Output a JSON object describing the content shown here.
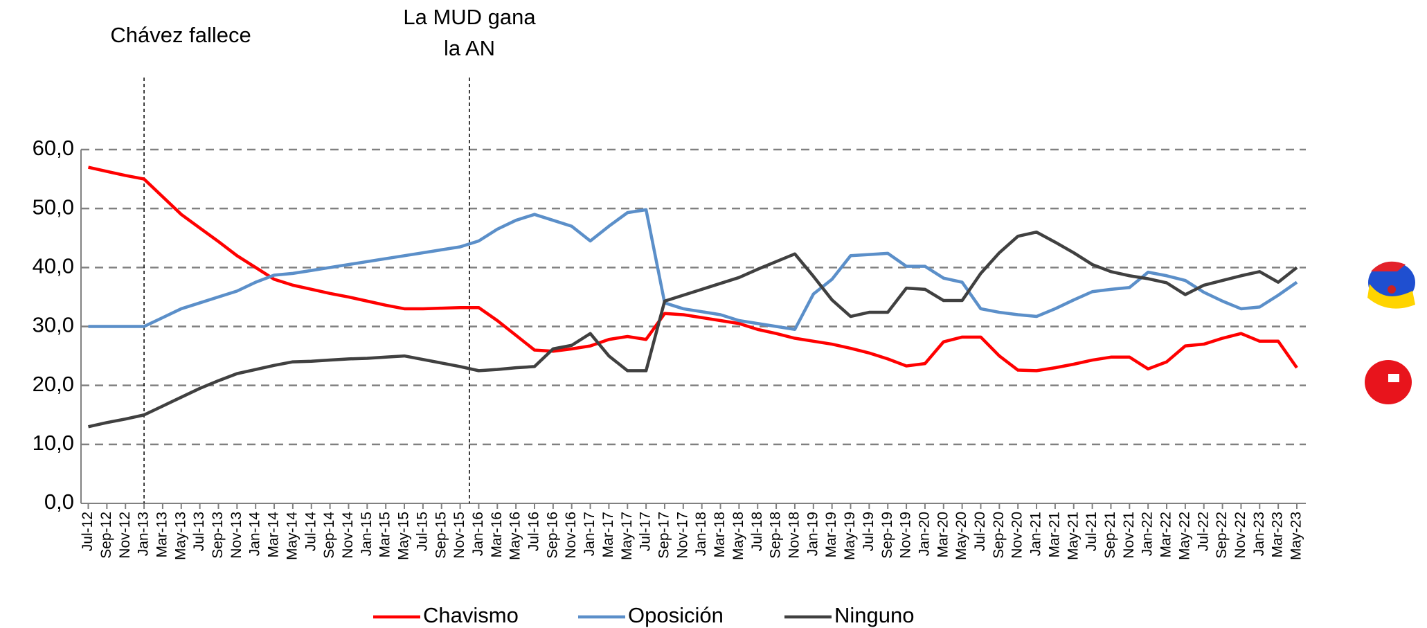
{
  "chart_data": {
    "type": "line",
    "categories": [
      "Jul-12",
      "Sep-12",
      "Nov-12",
      "Jan-13",
      "Mar-13",
      "May-13",
      "Jul-13",
      "Sep-13",
      "Nov-13",
      "Jan-14",
      "Mar-14",
      "May-14",
      "Jul-14",
      "Sep-14",
      "Nov-14",
      "Jan-15",
      "Mar-15",
      "May-15",
      "Jul-15",
      "Sep-15",
      "Nov-15",
      "Jan-16",
      "Mar-16",
      "May-16",
      "Jul-16",
      "Sep-16",
      "Nov-16",
      "Jan-17",
      "Mar-17",
      "May-17",
      "Jul-17",
      "Sep-17",
      "Nov-17",
      "Jan-18",
      "Mar-18",
      "May-18",
      "Jul-18",
      "Sep-18",
      "Nov-18",
      "Jan-19",
      "Mar-19",
      "May-19",
      "Jul-19",
      "Sep-19",
      "Nov-19",
      "Jan-20",
      "Mar-20",
      "May-20",
      "Jul-20",
      "Sep-20",
      "Nov-20",
      "Jan-21",
      "Mar-21",
      "May-21",
      "Jul-21",
      "Sep-21",
      "Nov-21",
      "Jan-22",
      "Mar-22",
      "May-22",
      "Jul-22",
      "Sep-22",
      "Nov-22",
      "Jan-23",
      "Mar-23",
      "May-23"
    ],
    "series": [
      {
        "name": "Chavismo",
        "color": "#ff0000",
        "values": [
          57,
          56.3,
          55.6,
          55,
          52,
          49,
          46.7,
          44.4,
          42,
          40,
          38,
          37,
          36.3,
          35.6,
          35,
          34.3,
          33.6,
          33,
          33,
          33.1,
          33.2,
          33.2,
          31,
          28.5,
          26,
          25.8,
          26.2,
          26.7,
          27.8,
          28.3,
          27.8,
          32.2,
          32,
          31.5,
          31,
          30.5,
          29.5,
          28.8,
          28,
          27.5,
          27,
          26.3,
          25.5,
          24.5,
          23.3,
          23.7,
          27.4,
          28.2,
          28.2,
          25,
          22.6,
          22.5,
          23,
          23.6,
          24.3,
          24.8,
          24.8,
          22.8,
          24,
          26.7,
          27,
          28,
          28.8,
          27.5,
          27.5,
          23
        ]
      },
      {
        "name": "Oposición",
        "color": "#5b8fc9",
        "values": [
          30,
          30,
          30,
          30,
          31.5,
          33,
          34,
          35,
          36,
          37.5,
          38.7,
          39,
          39.5,
          40,
          40.5,
          41,
          41.5,
          42,
          42.5,
          43,
          43.5,
          44.5,
          46.5,
          48,
          49,
          48,
          47,
          44.5,
          47,
          49.3,
          49.8,
          34,
          33,
          32.5,
          32,
          31,
          30.5,
          30,
          29.5,
          35.5,
          38,
          42,
          42.2,
          42.4,
          40.2,
          40.2,
          38.2,
          37.5,
          33,
          32.4,
          32,
          31.7,
          33,
          34.5,
          35.9,
          36.3,
          36.6,
          39.2,
          38.6,
          37.8,
          35.8,
          34.3,
          33,
          33.3,
          35.3,
          37.5
        ]
      },
      {
        "name": "Ninguno",
        "color": "#404040",
        "values": [
          13,
          13.7,
          14.3,
          15,
          16.5,
          18,
          19.5,
          20.8,
          22,
          22.7,
          23.4,
          24,
          24.1,
          24.3,
          24.5,
          24.6,
          24.8,
          25,
          24.4,
          23.8,
          23.2,
          22.5,
          22.7,
          23,
          23.2,
          26.2,
          26.8,
          28.8,
          25,
          22.5,
          22.5,
          34.3,
          35.3,
          36.3,
          37.3,
          38.3,
          39.7,
          41,
          42.3,
          38.5,
          34.5,
          31.7,
          32.4,
          32.4,
          36.5,
          36.3,
          34.4,
          34.4,
          39,
          42.5,
          45.3,
          46,
          44.3,
          42.5,
          40.5,
          39.3,
          38.6,
          38.1,
          37.4,
          35.4,
          37,
          37.8,
          38.6,
          39.3,
          37.5,
          40
        ]
      }
    ],
    "ylim": [
      0,
      60
    ],
    "yticks": [
      {
        "value": 0,
        "label": "0,0"
      },
      {
        "value": 10,
        "label": "10,0"
      },
      {
        "value": 20,
        "label": "20,0"
      },
      {
        "value": 30,
        "label": "30,0"
      },
      {
        "value": 40,
        "label": "40,0"
      },
      {
        "value": 50,
        "label": "50,0"
      },
      {
        "value": 60,
        "label": "60,0"
      }
    ],
    "grid": true,
    "legend": "bottom",
    "annotations": [
      {
        "text": [
          "Chávez fallece"
        ],
        "x": 3
      },
      {
        "text": [
          "La MUD gana",
          "la AN"
        ],
        "x": 20.5
      }
    ]
  }
}
